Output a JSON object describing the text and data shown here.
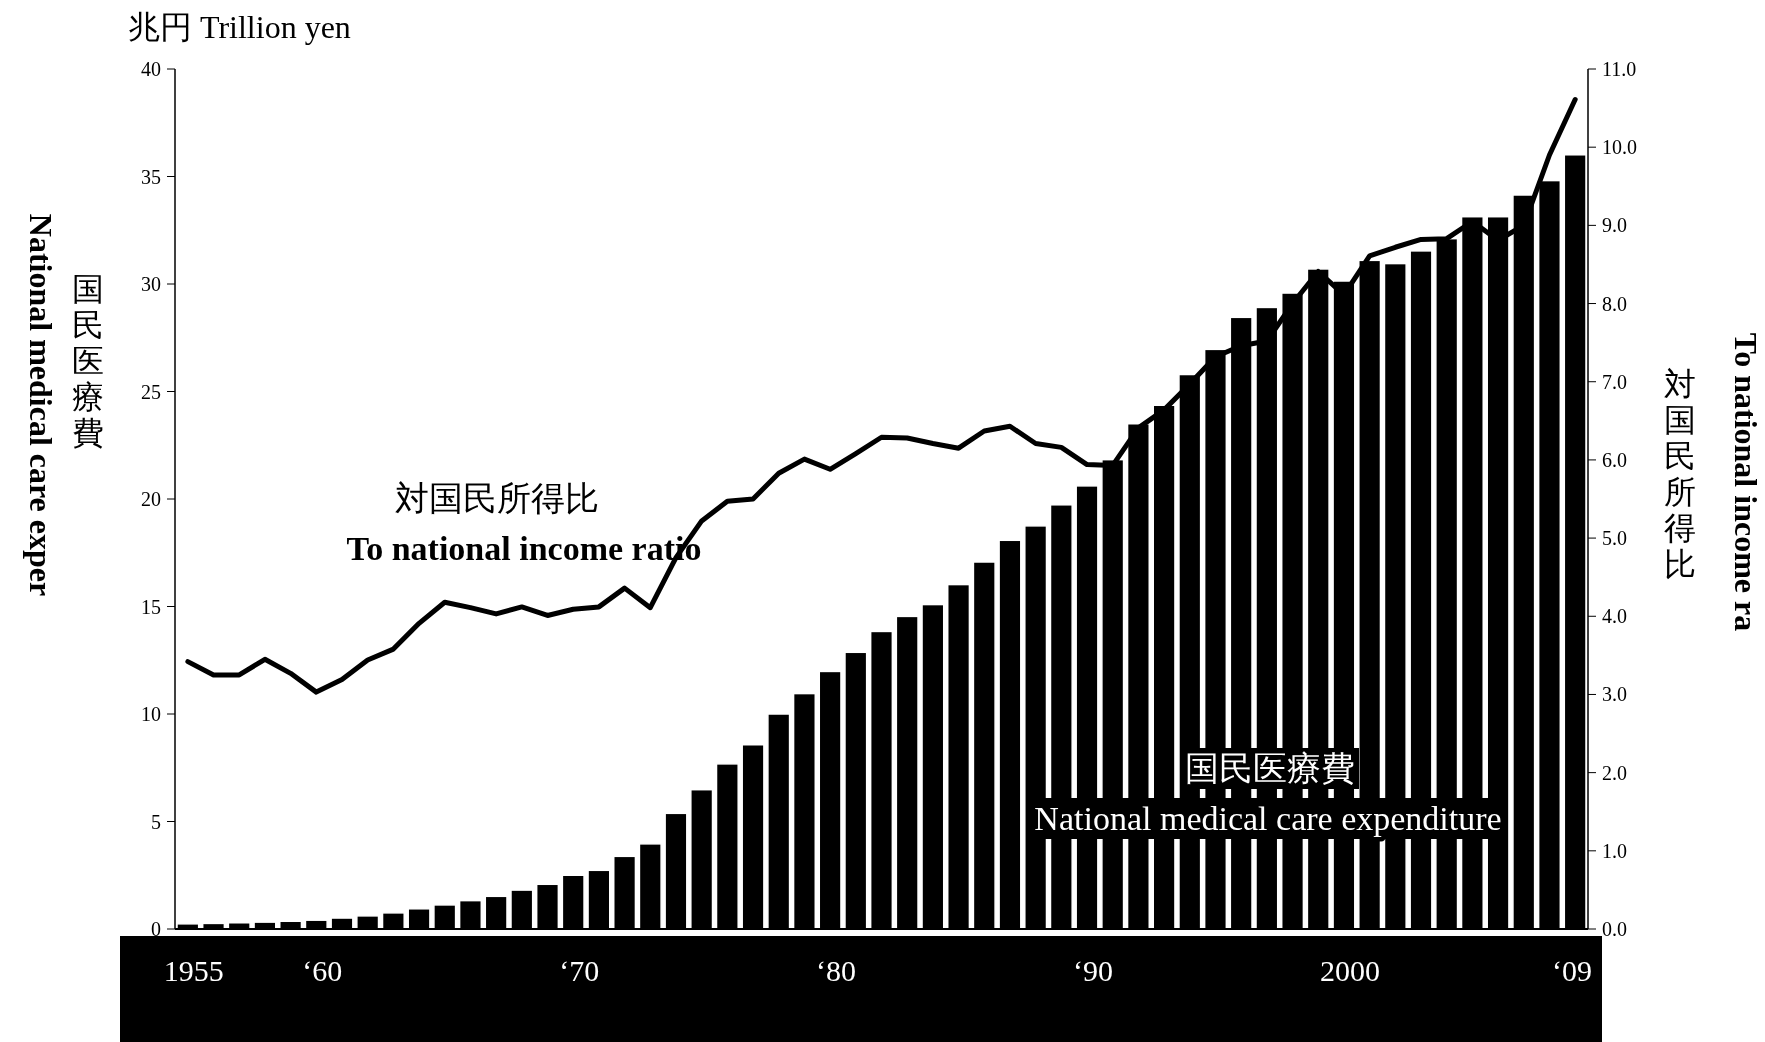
{
  "chart_data": {
    "type": "bar",
    "title": "兆円  Trillion yen",
    "ylabel": "国民医療費\nNational medical care exper",
    "y2label": "対国民所得比\nTo national income ra",
    "categories": [
      "1955",
      null,
      null,
      null,
      null,
      "‘60",
      null,
      null,
      null,
      null,
      null,
      null,
      null,
      null,
      null,
      "‘70",
      null,
      null,
      null,
      null,
      null,
      null,
      null,
      null,
      null,
      "‘80",
      null,
      null,
      null,
      null,
      null,
      null,
      null,
      null,
      null,
      "‘90",
      null,
      null,
      null,
      null,
      null,
      null,
      null,
      null,
      null,
      "2000",
      null,
      null,
      null,
      null,
      null,
      null,
      null,
      null,
      "‘09"
    ],
    "series": [
      {
        "name": "国民医療費\nNational medical care expenditure",
        "color": "#000000",
        "values": [
          0.24,
          0.26,
          0.29,
          0.32,
          0.36,
          0.41,
          0.51,
          0.61,
          0.75,
          0.94,
          1.12,
          1.32,
          1.52,
          1.81,
          2.08,
          2.5,
          2.73,
          3.38,
          3.96,
          5.38,
          6.48,
          7.68,
          8.57,
          10.0,
          10.95,
          11.98,
          12.87,
          13.84,
          14.54,
          15.09,
          16.02,
          17.07,
          18.08,
          18.75,
          19.73,
          20.61,
          21.83,
          23.5,
          24.36,
          25.79,
          26.96,
          28.45,
          28.91,
          29.58,
          30.7,
          30.14,
          31.1,
          30.95,
          31.54,
          32.11,
          33.13,
          33.13,
          34.14,
          34.81,
          36.01
        ]
      },
      {
        "type": "line",
        "axis": "y2",
        "name": "対国民所得比\nTo national income ratio",
        "color": "#000000",
        "values": [
          3.42,
          3.25,
          3.25,
          3.45,
          3.27,
          3.03,
          3.19,
          3.44,
          3.58,
          3.91,
          4.18,
          4.11,
          4.03,
          4.12,
          4.01,
          4.09,
          4.12,
          4.36,
          4.11,
          4.75,
          5.22,
          5.47,
          5.5,
          5.83,
          6.01,
          5.88,
          6.08,
          6.29,
          6.28,
          6.21,
          6.15,
          6.37,
          6.43,
          6.21,
          6.16,
          5.94,
          5.93,
          6.41,
          6.64,
          6.97,
          7.32,
          7.46,
          7.52,
          8.0,
          8.41,
          8.11,
          8.61,
          8.72,
          8.82,
          8.83,
          9.05,
          8.81,
          9.0,
          9.9,
          10.61
        ]
      }
    ],
    "ylim": [
      0,
      40
    ],
    "yticks": [
      0,
      5,
      10,
      15,
      20,
      25,
      30,
      35,
      40
    ],
    "y2lim": [
      0,
      11
    ],
    "y2ticks": [
      {
        "value": 0,
        "label": "0.0"
      },
      {
        "value": 1,
        "label": "1.0"
      },
      {
        "value": 2,
        "label": "2.0"
      },
      {
        "value": 3,
        "label": "3.0"
      },
      {
        "value": 4,
        "label": "4.0"
      },
      {
        "value": 5,
        "label": "5.0"
      },
      {
        "value": 6,
        "label": "6.0"
      },
      {
        "value": 7,
        "label": "7.0"
      },
      {
        "value": 8,
        "label": "8.0"
      },
      {
        "value": 9,
        "label": "9.0"
      },
      {
        "value": 10,
        "label": "10.0"
      },
      {
        "value": 11,
        "label": "11.0"
      }
    ]
  }
}
